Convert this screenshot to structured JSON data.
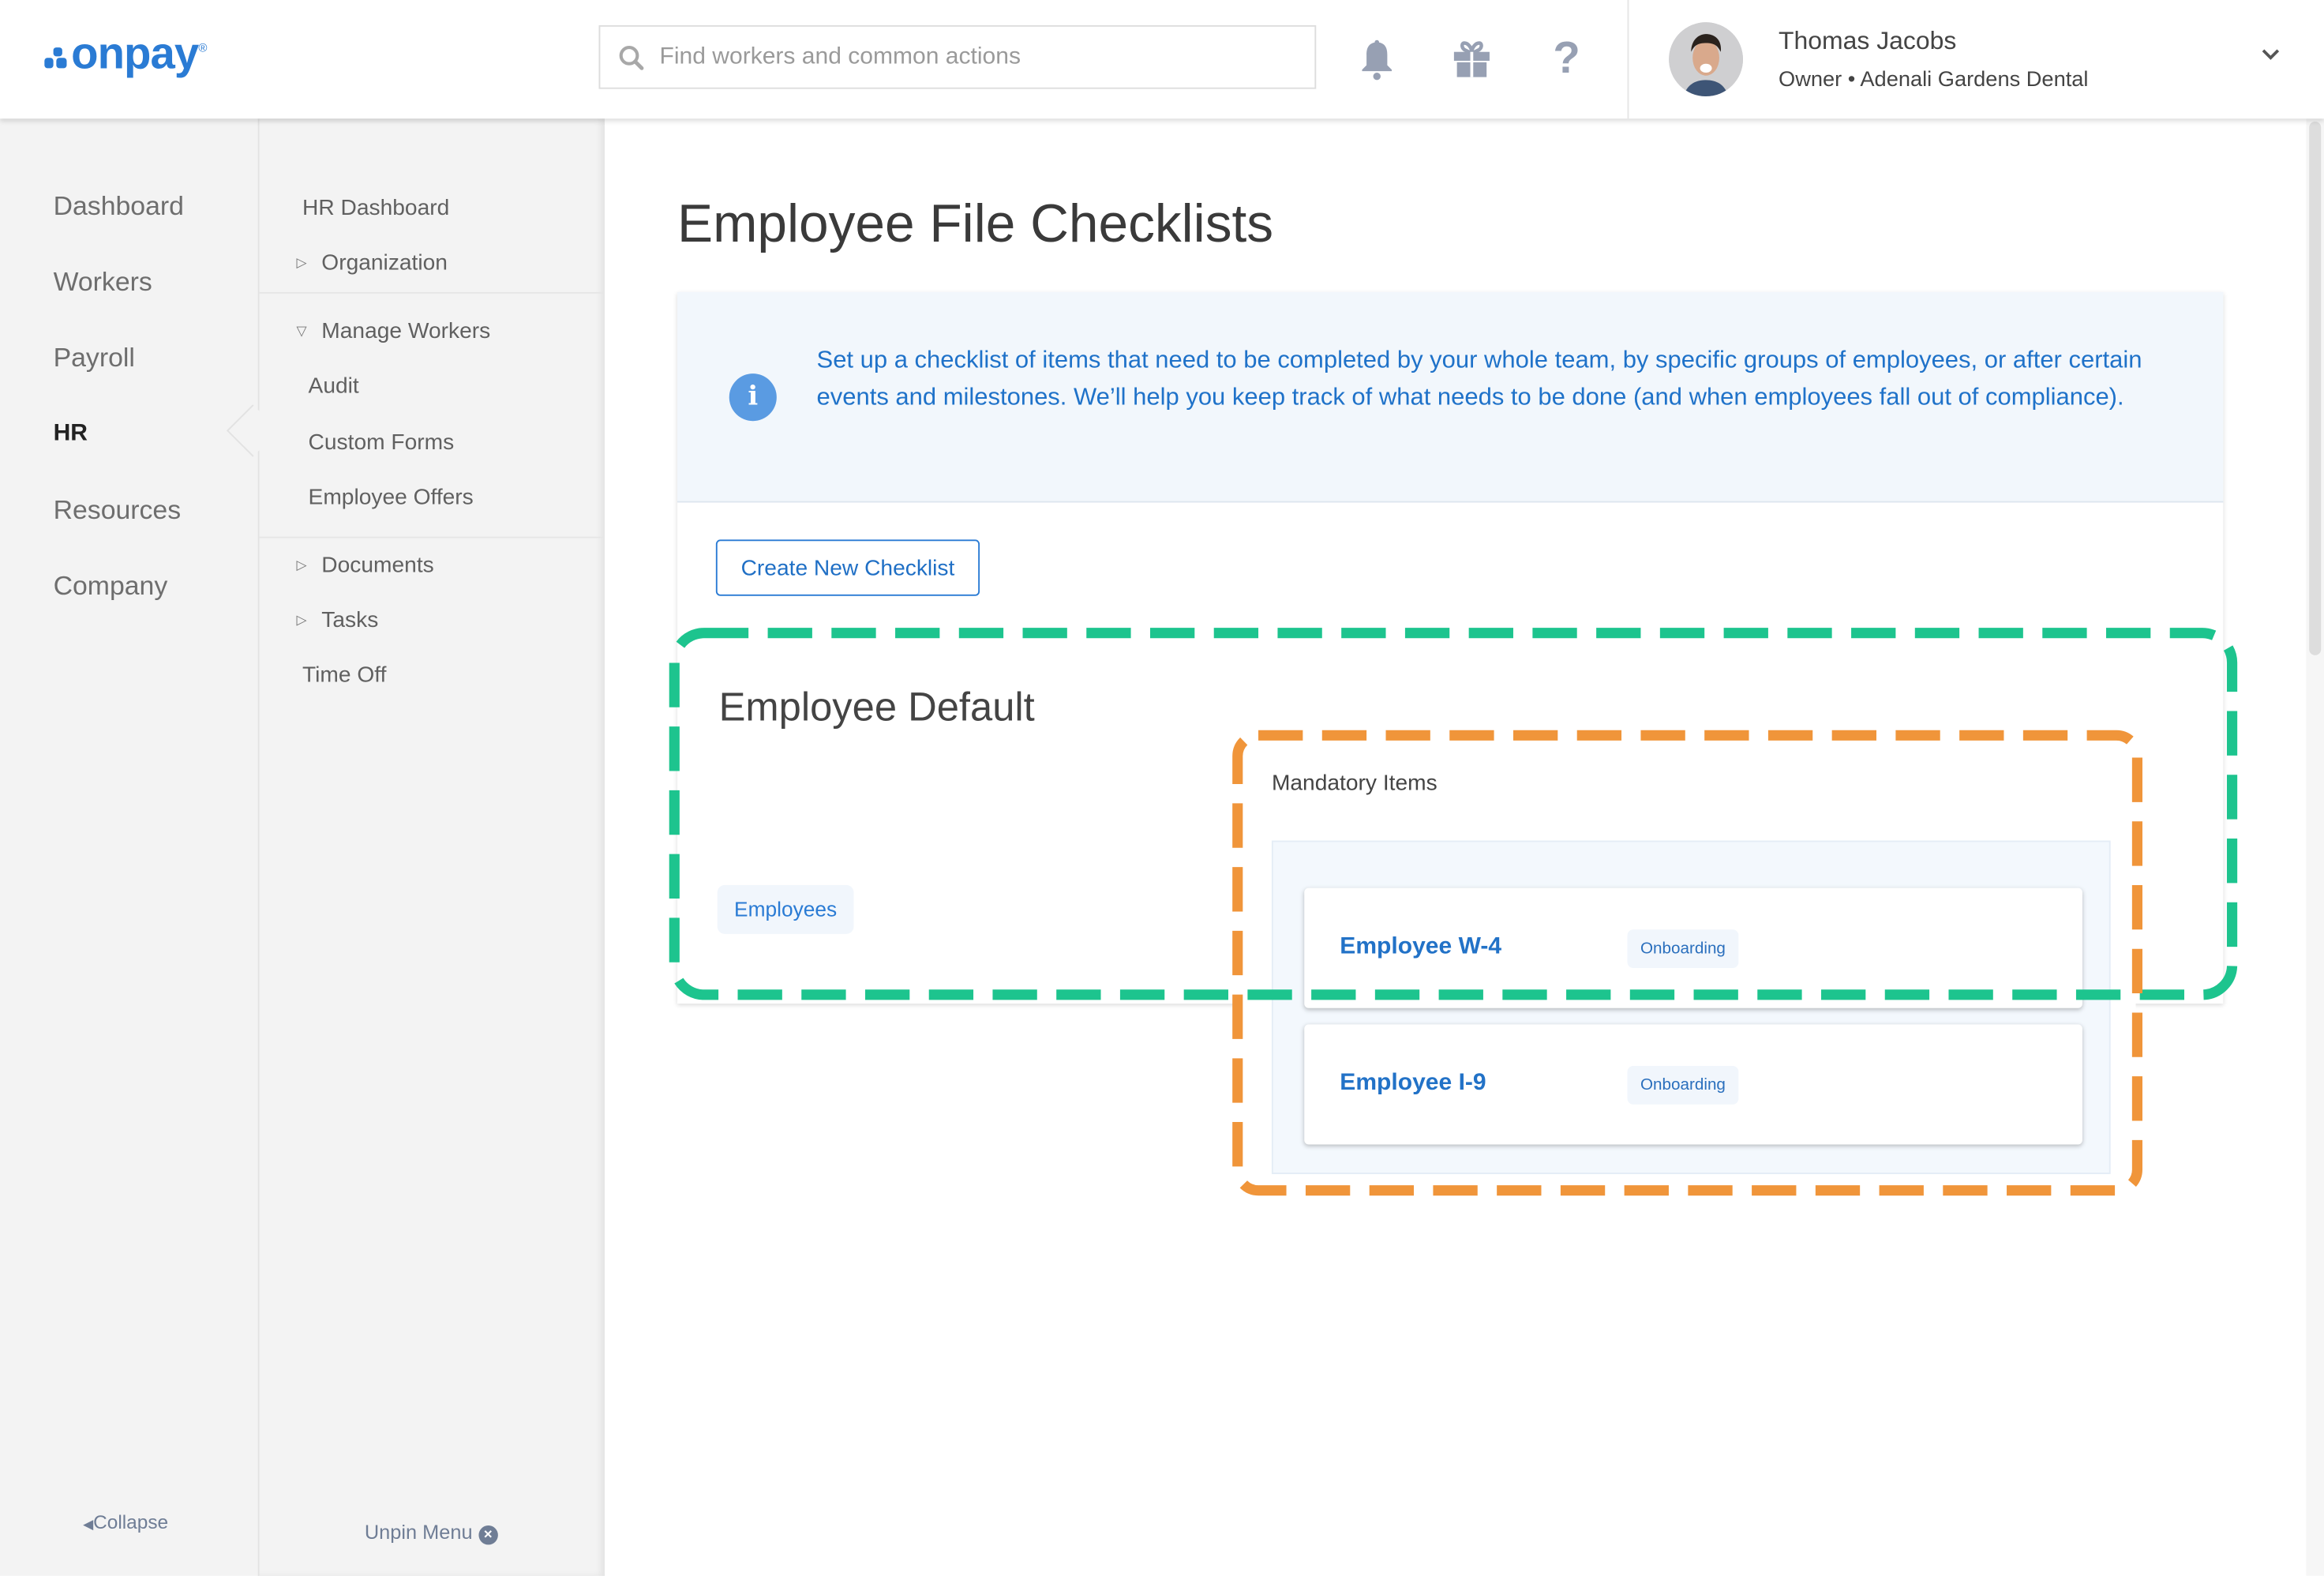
{
  "header": {
    "logo_text": "onpay",
    "search_placeholder": "Find workers and common actions",
    "icons": [
      "search-icon",
      "bell-icon",
      "gift-icon",
      "help-icon",
      "chevron-down-icon"
    ],
    "user": {
      "name": "Thomas Jacobs",
      "role": "Owner • Adenali Gardens Dental"
    }
  },
  "primary_nav": {
    "items": [
      {
        "label": "Dashboard"
      },
      {
        "label": "Workers"
      },
      {
        "label": "Payroll"
      },
      {
        "label": "HR",
        "active": true
      },
      {
        "label": "Resources"
      },
      {
        "label": "Company"
      }
    ],
    "collapse_label": "Collapse"
  },
  "secondary_nav": {
    "hr_dashboard": "HR Dashboard",
    "organization": "Organization",
    "manage_workers": "Manage Workers",
    "audit": "Audit",
    "custom_forms": "Custom Forms",
    "employee_offers": "Employee Offers",
    "documents": "Documents",
    "tasks": "Tasks",
    "time_off": "Time Off",
    "unpin_label": "Unpin Menu"
  },
  "main": {
    "title": "Employee File Checklists",
    "info_text": "Set up a checklist of items that need to be completed by your whole team, by specific groups of employees, or after certain events and milestones. We’ll help you keep track of what needs to be done (and when employees fall out of compliance).",
    "create_button": "Create New Checklist",
    "checklist": {
      "name": "Employee Default",
      "group_chip": "Employees",
      "mandatory_title": "Mandatory Items",
      "items": [
        {
          "name": "Employee W-4",
          "badge": "Onboarding"
        },
        {
          "name": "Employee I-9",
          "badge": "Onboarding"
        }
      ]
    }
  },
  "colors": {
    "brand": "#2a7bd4",
    "highlight_green": "#1dc48e",
    "highlight_orange": "#f0953a",
    "info_bg": "#f2f7fc"
  }
}
